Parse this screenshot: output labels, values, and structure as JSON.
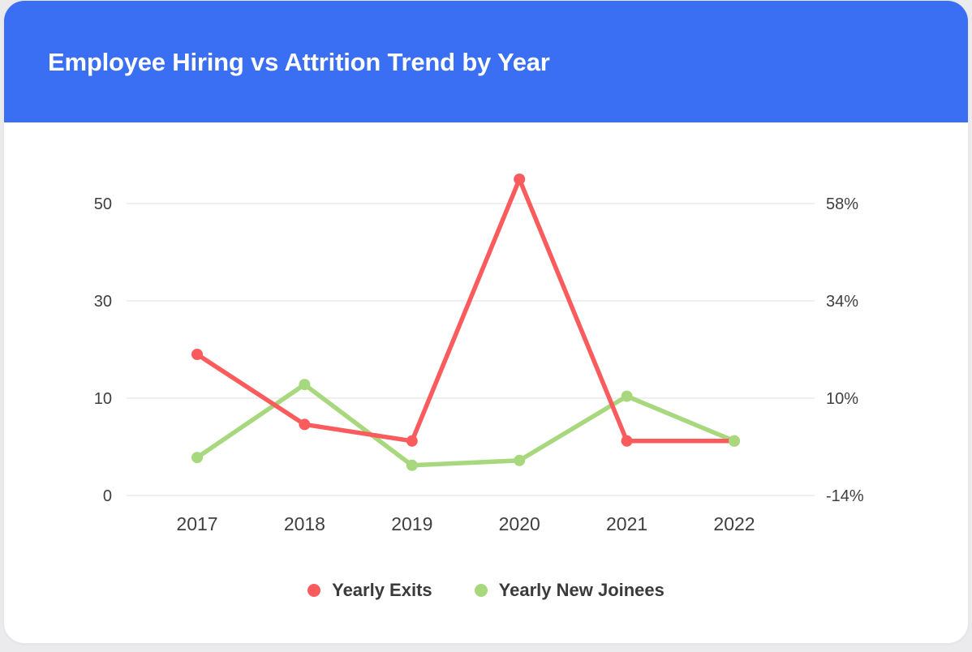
{
  "header": {
    "title": "Employee Hiring vs Attrition Trend by Year",
    "background_color": "#3a6ff3",
    "text_color": "#ffffff"
  },
  "chart_data": {
    "type": "line",
    "title": "Employee Hiring vs Attrition Trend by Year",
    "categories": [
      "2017",
      "2018",
      "2019",
      "2020",
      "2021",
      "2022"
    ],
    "series": [
      {
        "name": "Yearly Exits",
        "color": "#fa5c5e",
        "values": [
          19,
          7.3,
          5.6,
          55,
          5.6,
          5.6
        ]
      },
      {
        "name": "Yearly New Joinees",
        "color": "#a7d87d",
        "values": [
          3.9,
          12.8,
          3.1,
          3.6,
          10.4,
          5.6
        ]
      }
    ],
    "left_axis": {
      "tick_values": [
        0,
        10,
        30,
        50
      ]
    },
    "right_axis": {
      "tick_labels": [
        "-14%",
        "10%",
        "34%",
        "58%"
      ]
    },
    "grid": true,
    "gridline_color": "#ececec",
    "axis_text_color": "#3f3f3f",
    "legend_position": "bottom",
    "marker_radius": 7,
    "line_width": 5.5
  },
  "legend": {
    "items": [
      {
        "label": "Yearly Exits",
        "color": "#fa5c5e"
      },
      {
        "label": "Yearly New Joinees",
        "color": "#a7d87d"
      }
    ]
  }
}
